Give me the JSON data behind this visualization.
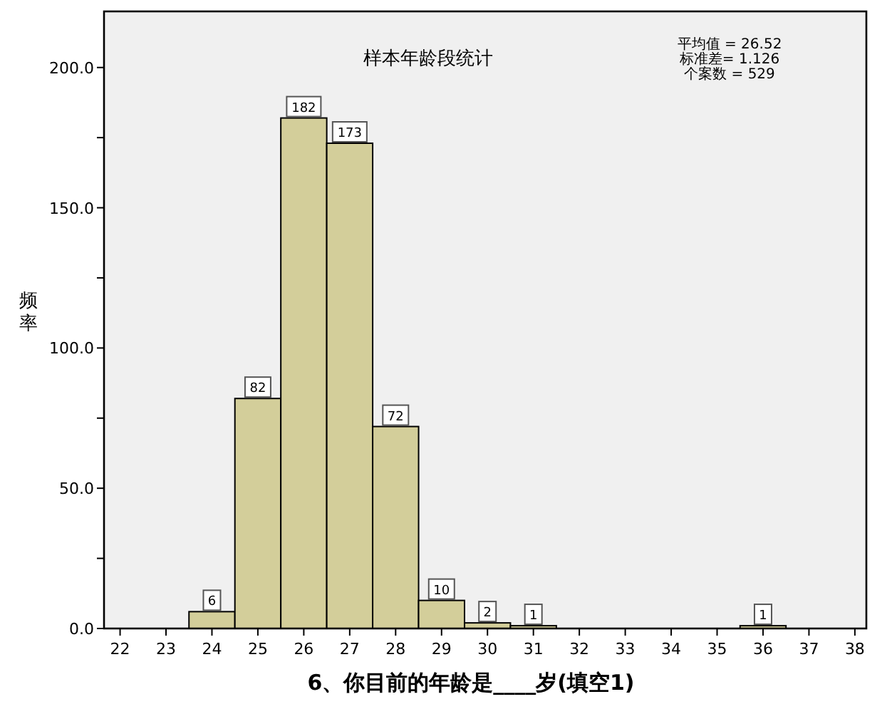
{
  "chart_data": {
    "type": "histogram",
    "title": "样本年龄段统计",
    "xlabel": "6、你目前的年龄是____岁(填空1)",
    "ylabel": "频率",
    "annotations": [
      "平均值 = 26.52",
      "标准差= 1.126",
      "个案数 = 529"
    ],
    "bins": [
      23.5,
      24.5,
      25.5,
      26.5,
      27.5,
      28.5,
      29.5,
      30.5,
      31.5,
      32.5,
      33.5,
      34.5,
      35.5,
      36.5
    ],
    "values": [
      6,
      82,
      182,
      173,
      72,
      10,
      2,
      1,
      0,
      0,
      0,
      0,
      1
    ],
    "value_labels": [
      "6",
      "82",
      "182",
      "173",
      "72",
      "10",
      "2",
      "1",
      null,
      null,
      null,
      null,
      "1"
    ],
    "color": "#d3ce9a",
    "xlim": [
      21.65,
      38.25
    ],
    "xticks": [
      22,
      23,
      24,
      25,
      26,
      27,
      28,
      29,
      30,
      31,
      32,
      33,
      34,
      35,
      36,
      37,
      38
    ],
    "ylim": [
      0,
      220
    ],
    "yticks": [
      {
        "value": 0,
        "label": "0.0"
      },
      {
        "value": 25,
        "label": null
      },
      {
        "value": 50,
        "label": "50.0"
      },
      {
        "value": 75,
        "label": null
      },
      {
        "value": 100,
        "label": "100.0"
      },
      {
        "value": 125,
        "label": null
      },
      {
        "value": 150,
        "label": "150.0"
      },
      {
        "value": 175,
        "label": null
      },
      {
        "value": 200,
        "label": "200.0"
      }
    ],
    "grid": false
  }
}
